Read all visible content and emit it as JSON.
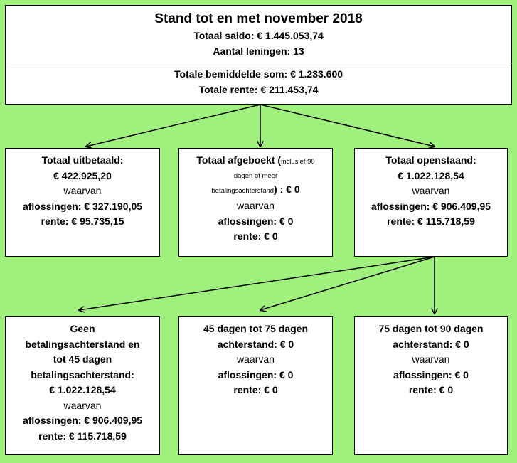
{
  "top": {
    "title": "Stand tot en met november 2018",
    "saldo": "Totaal saldo: € 1.445.053,74",
    "leningen": "Aantal leningen: 13",
    "bemiddeld": "Totale bemiddelde som: € 1.233.600",
    "rente": "Totale rente: € 211.453,74"
  },
  "paid": {
    "title": "Totaal uitbetaald:",
    "amount": "€ 422.925,20",
    "waarvan": "waarvan",
    "aflossingen": "aflossingen: € 327.190,05",
    "rente": "rente: € 95.735,15"
  },
  "written_off": {
    "title": "Totaal afgeboekt (",
    "note_1": "inclusief 90",
    "note_2": "dagen of meer",
    "note_3": "betalingsachterstand",
    "amount": ") : € 0",
    "waarvan": "waarvan",
    "aflossingen": "aflossingen: € 0",
    "rente": "rente: € 0"
  },
  "open": {
    "title": "Totaal openstaand:",
    "amount": "€ 1.022.128,54",
    "waarvan": "waarvan",
    "aflossingen": "aflossingen: € 906.409,95",
    "rente": "rente: € 115.718,59"
  },
  "bucket_1": {
    "line1": "Geen",
    "line2": "betalingsachterstand en",
    "line3": "tot 45 dagen",
    "line4": "betalingsachterstand:",
    "amount": "€ 1.022.128,54",
    "waarvan": "waarvan",
    "aflossingen": "aflossingen: € 906.409,95",
    "rente": "rente: € 115.718,59"
  },
  "bucket_2": {
    "line1": "45 dagen tot 75 dagen",
    "line2": "achterstand: € 0",
    "waarvan": "waarvan",
    "aflossingen": "aflossingen: € 0",
    "rente": "rente: € 0"
  },
  "bucket_3": {
    "line1": "75 dagen tot 90 dagen",
    "line2": "achterstand: € 0",
    "waarvan": "waarvan",
    "aflossingen": "aflossingen: € 0",
    "rente": "rente: € 0"
  },
  "colors": {
    "background": "#a0f07e",
    "box": "#ffffff",
    "line": "#000000"
  }
}
